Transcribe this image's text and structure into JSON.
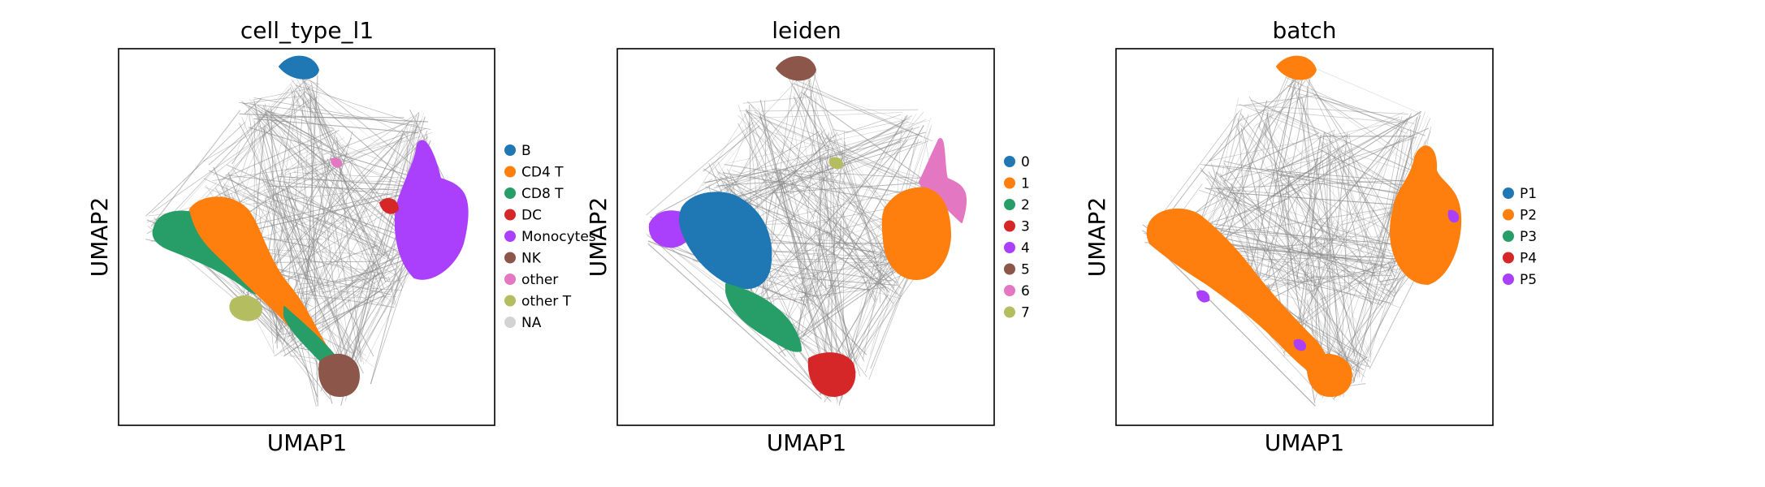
{
  "chart_data": [
    {
      "type": "scatter",
      "title": "cell_type_l1",
      "xlabel": "UMAP1",
      "ylabel": "UMAP2",
      "grid": false,
      "legend_position": "right",
      "legend": [
        {
          "label": "B",
          "color": "#1f77b4"
        },
        {
          "label": "CD4 T",
          "color": "#ff7f0e"
        },
        {
          "label": "CD8 T",
          "color": "#279e68"
        },
        {
          "label": "DC",
          "color": "#d62728"
        },
        {
          "label": "Monocytes",
          "color": "#aa40fc"
        },
        {
          "label": "NK",
          "color": "#8c564b"
        },
        {
          "label": "other",
          "color": "#e377c2"
        },
        {
          "label": "other T",
          "color": "#b5bd61"
        },
        {
          "label": "NA",
          "color": "#d3d3d3"
        }
      ]
    },
    {
      "type": "scatter",
      "title": "leiden",
      "xlabel": "UMAP1",
      "ylabel": "UMAP2",
      "grid": false,
      "legend_position": "right",
      "legend": [
        {
          "label": "0",
          "color": "#1f77b4"
        },
        {
          "label": "1",
          "color": "#ff7f0e"
        },
        {
          "label": "2",
          "color": "#279e68"
        },
        {
          "label": "3",
          "color": "#d62728"
        },
        {
          "label": "4",
          "color": "#aa40fc"
        },
        {
          "label": "5",
          "color": "#8c564b"
        },
        {
          "label": "6",
          "color": "#e377c2"
        },
        {
          "label": "7",
          "color": "#b5bd61"
        }
      ]
    },
    {
      "type": "scatter",
      "title": "batch",
      "xlabel": "UMAP1",
      "ylabel": "UMAP2",
      "grid": false,
      "legend_position": "right",
      "legend": [
        {
          "label": "P1",
          "color": "#1f77b4"
        },
        {
          "label": "P2",
          "color": "#ff7f0e"
        },
        {
          "label": "P3",
          "color": "#279e68"
        },
        {
          "label": "P4",
          "color": "#d62728"
        },
        {
          "label": "P5",
          "color": "#aa40fc"
        }
      ]
    }
  ],
  "colors": {
    "edges": "#8a8a8a",
    "frame": "#000000"
  }
}
